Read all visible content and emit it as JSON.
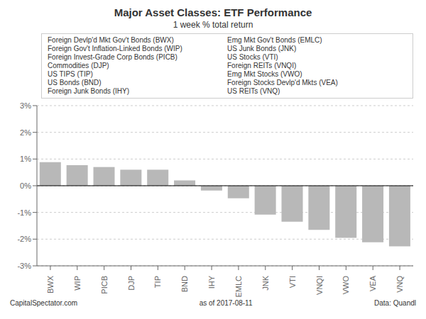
{
  "chart_data": {
    "type": "bar",
    "title": "Major Asset Classes: ETF Performance",
    "subtitle": "1 week % total return",
    "categories": [
      "BWX",
      "WIP",
      "PICB",
      "DJP",
      "TIP",
      "BND",
      "IHY",
      "EMLC",
      "JNK",
      "VTI",
      "VNQI",
      "VWO",
      "VEA",
      "VNQ"
    ],
    "values": [
      0.88,
      0.77,
      0.7,
      0.6,
      0.6,
      0.2,
      -0.18,
      -0.47,
      -1.08,
      -1.35,
      -1.65,
      -1.95,
      -2.12,
      -2.27
    ],
    "color": "#b8b8b8",
    "ylim": [
      -3,
      3
    ],
    "yticks": [
      {
        "value": -3,
        "label": "-3%"
      },
      {
        "value": -2,
        "label": "-2%"
      },
      {
        "value": -1,
        "label": "-1%"
      },
      {
        "value": 0,
        "label": "0%"
      },
      {
        "value": 1,
        "label": "1%"
      },
      {
        "value": 2,
        "label": "2%"
      },
      {
        "value": 3,
        "label": "3%"
      }
    ],
    "grid": true,
    "annotations": {
      "notes_col1": [
        "Foreign Devlp'd Mkt Gov't Bonds (BWX)",
        "Foreign Gov't Inflation-Linked Bonds (WIP)",
        "Foreign Invest-Grade Corp Bonds (PICB)",
        "Commodities (DJP)",
        "US TIPS (TIP)",
        "US Bonds (BND)",
        "Foreign Junk Bonds (IHY)"
      ],
      "notes_col2": [
        "Emg Mkt Gov't Bonds (EMLC)",
        "US Junk Bonds (JNK)",
        "US Stocks (VTI)",
        "Foreign REITs (VNQI)",
        "Emg Mkt Stocks (VWO)",
        "Foreign Stocks Devlp'd Mkts (VEA)",
        "US REITs (VNQ)"
      ],
      "footer": [
        "CapitalSpectator.com",
        "as of  2017-08-11",
        "Data: Quandl"
      ]
    }
  }
}
